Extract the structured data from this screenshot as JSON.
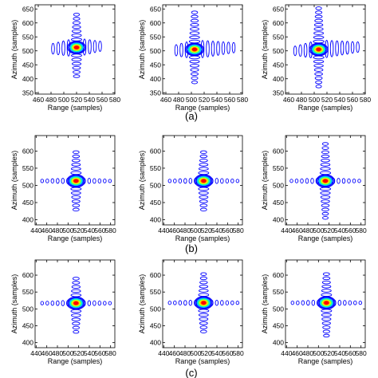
{
  "figure": {
    "row_captions": [
      "(a)",
      "(b)",
      "(c)"
    ]
  },
  "colors": {
    "contour_levels": [
      "#0000ff",
      "#0000ff",
      "#0000ff",
      "#00b4ff",
      "#00ffd0",
      "#7fff3a",
      "#ffff00",
      "#ff8000",
      "#ff0000"
    ],
    "axes": "#000000"
  },
  "chart_data": [
    {
      "type": "contour",
      "row": "(a)",
      "col": 1,
      "xlabel": "Range (samples)",
      "ylabel": "Azimuth (samples)",
      "xlim": [
        455,
        580
      ],
      "ylim": [
        345,
        665
      ],
      "xticks": [
        460,
        480,
        500,
        520,
        540,
        560,
        580
      ],
      "yticks": [
        350,
        400,
        450,
        500,
        550,
        600,
        650
      ],
      "peak": {
        "x": 520,
        "y": 512
      },
      "azimuth_extent": [
        395,
        635
      ],
      "range_extent": [
        478,
        560
      ],
      "sidelobe_tilt": -0.35
    },
    {
      "type": "contour",
      "row": "(a)",
      "col": 2,
      "xlabel": "Range (samples)",
      "ylabel": "Azimuth (samples)",
      "xlim": [
        455,
        580
      ],
      "ylim": [
        345,
        665
      ],
      "xticks": [
        460,
        480,
        500,
        520,
        540,
        560,
        580
      ],
      "yticks": [
        350,
        400,
        450,
        500,
        550,
        600,
        650
      ],
      "peak": {
        "x": 505,
        "y": 505
      },
      "azimuth_extent": [
        385,
        650
      ],
      "range_extent": [
        470,
        572
      ],
      "sidelobe_tilt": -0.3
    },
    {
      "type": "contour",
      "row": "(a)",
      "col": 3,
      "xlabel": "Range (samples)",
      "ylabel": "Azimuth (samples)",
      "xlim": [
        455,
        580
      ],
      "ylim": [
        345,
        665
      ],
      "xticks": [
        460,
        480,
        500,
        520,
        540,
        560,
        580
      ],
      "yticks": [
        350,
        400,
        450,
        500,
        550,
        600,
        650
      ],
      "peak": {
        "x": 507,
        "y": 505
      },
      "azimuth_extent": [
        370,
        660
      ],
      "range_extent": [
        470,
        575
      ],
      "sidelobe_tilt": -0.4
    },
    {
      "type": "contour",
      "row": "(b)",
      "col": 1,
      "xlabel": "Range (samples)",
      "ylabel": "Azimuth (samples)",
      "xlim": [
        438,
        588
      ],
      "ylim": [
        385,
        645
      ],
      "xticks": [
        440,
        460,
        480,
        500,
        520,
        540,
        560,
        580
      ],
      "yticks": [
        400,
        450,
        500,
        550,
        600
      ],
      "peak": {
        "x": 515,
        "y": 513
      },
      "azimuth_extent": [
        420,
        605
      ],
      "range_extent": [
        445,
        582
      ],
      "sidelobe_tilt": 0
    },
    {
      "type": "contour",
      "row": "(b)",
      "col": 2,
      "xlabel": "Range (samples)",
      "ylabel": "Azimuth (samples)",
      "xlim": [
        438,
        588
      ],
      "ylim": [
        385,
        645
      ],
      "xticks": [
        440,
        460,
        480,
        500,
        520,
        540,
        560,
        580
      ],
      "yticks": [
        400,
        450,
        500,
        550,
        600
      ],
      "peak": {
        "x": 515,
        "y": 513
      },
      "azimuth_extent": [
        420,
        605
      ],
      "range_extent": [
        445,
        582
      ],
      "sidelobe_tilt": 0
    },
    {
      "type": "contour",
      "row": "(b)",
      "col": 3,
      "xlabel": "Range (samples)",
      "ylabel": "Azimuth (samples)",
      "xlim": [
        438,
        588
      ],
      "ylim": [
        385,
        645
      ],
      "xticks": [
        440,
        460,
        480,
        500,
        520,
        540,
        560,
        580
      ],
      "yticks": [
        400,
        450,
        500,
        550,
        600
      ],
      "peak": {
        "x": 513,
        "y": 513
      },
      "azimuth_extent": [
        405,
        625
      ],
      "range_extent": [
        445,
        582
      ],
      "sidelobe_tilt": 0
    },
    {
      "type": "contour",
      "row": "(c)",
      "col": 1,
      "xlabel": "Range (samples)",
      "ylabel": "Azimuth (samples)",
      "xlim": [
        438,
        588
      ],
      "ylim": [
        385,
        645
      ],
      "xticks": [
        440,
        460,
        480,
        500,
        520,
        540,
        560,
        580
      ],
      "yticks": [
        400,
        450,
        500,
        550,
        600
      ],
      "peak": {
        "x": 515,
        "y": 517
      },
      "azimuth_extent": [
        430,
        600
      ],
      "range_extent": [
        445,
        582
      ],
      "sidelobe_tilt": 0
    },
    {
      "type": "contour",
      "row": "(c)",
      "col": 2,
      "xlabel": "Range (samples)",
      "ylabel": "Azimuth (samples)",
      "xlim": [
        438,
        588
      ],
      "ylim": [
        385,
        645
      ],
      "xticks": [
        440,
        460,
        480,
        500,
        520,
        540,
        560,
        580
      ],
      "yticks": [
        400,
        450,
        500,
        550,
        600
      ],
      "peak": {
        "x": 515,
        "y": 518
      },
      "azimuth_extent": [
        425,
        605
      ],
      "range_extent": [
        445,
        582
      ],
      "sidelobe_tilt": 0
    },
    {
      "type": "contour",
      "row": "(c)",
      "col": 3,
      "xlabel": "Range (samples)",
      "ylabel": "Azimuth (samples)",
      "xlim": [
        438,
        588
      ],
      "ylim": [
        385,
        645
      ],
      "xticks": [
        440,
        460,
        480,
        500,
        520,
        540,
        560,
        580
      ],
      "yticks": [
        400,
        450,
        500,
        550,
        600
      ],
      "peak": {
        "x": 515,
        "y": 518
      },
      "azimuth_extent": [
        415,
        615
      ],
      "range_extent": [
        445,
        582
      ],
      "sidelobe_tilt": 0
    }
  ]
}
